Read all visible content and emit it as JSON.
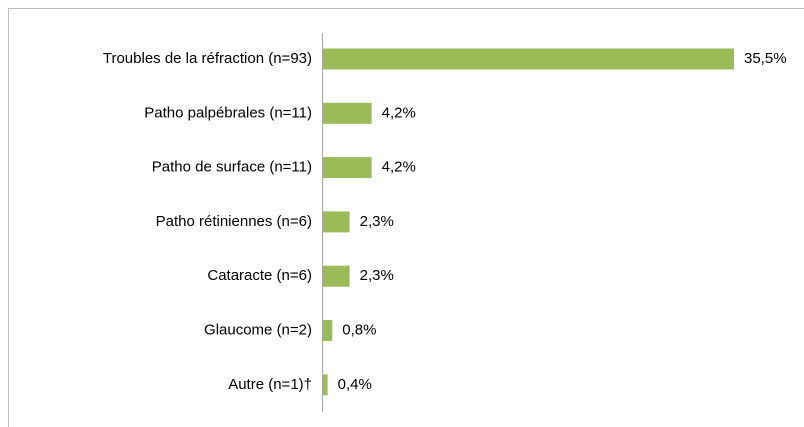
{
  "chart_data": {
    "type": "bar",
    "orientation": "horizontal",
    "categories": [
      "Troubles de la réfraction (n=93)",
      "Patho palpébrales (n=11)",
      "Patho de surface (n=11)",
      "Patho rétiniennes (n=6)",
      "Cataracte (n=6)",
      "Glaucome (n=2)",
      "Autre (n=1)†"
    ],
    "values": [
      35.5,
      4.2,
      4.2,
      2.3,
      2.3,
      0.8,
      0.4
    ],
    "value_labels": [
      "35,5%",
      "4,2%",
      "4,2%",
      "2,3%",
      "2,3%",
      "0,8%",
      "0,4%"
    ],
    "color": "#9bbb59"
  }
}
